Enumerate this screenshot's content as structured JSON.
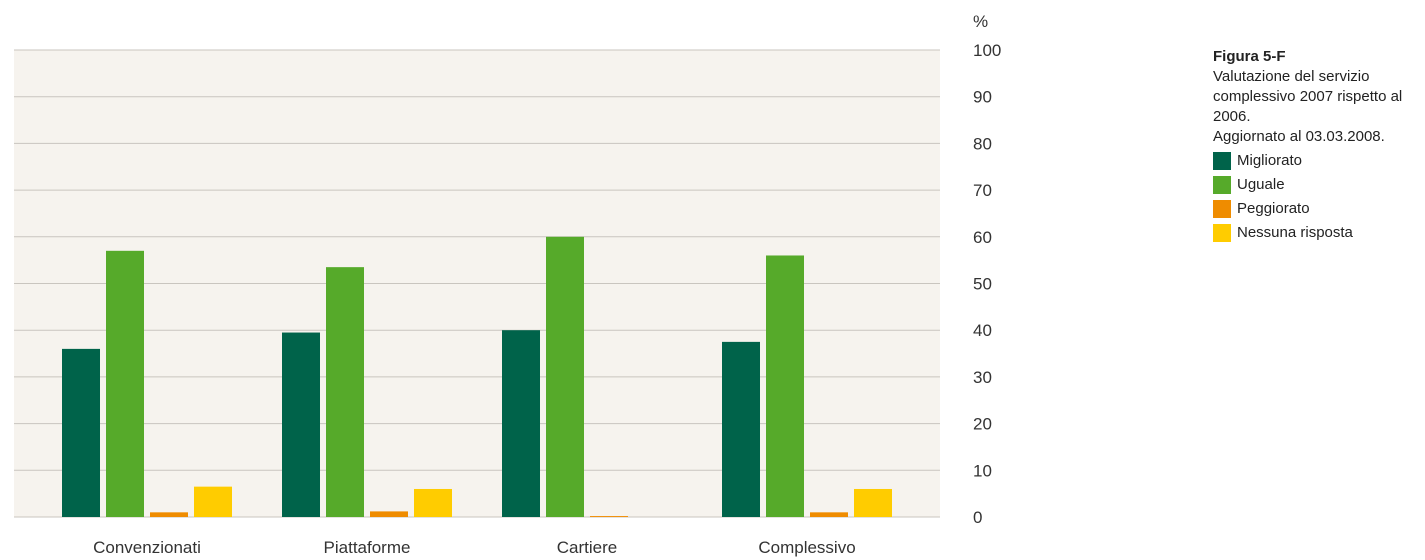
{
  "figure": {
    "title": "Figura 5-F",
    "description": "Valutazione del servizio complessivo 2007 rispetto al 2006.",
    "updated": "Aggiornato al 03.03.2008."
  },
  "chart_data": {
    "type": "bar",
    "categories": [
      "Convenzionati",
      "Piattaforme",
      "Cartiere",
      "Complessivo"
    ],
    "series": [
      {
        "name": "Migliorato",
        "color": "#00634a",
        "values": [
          36,
          39.5,
          40,
          37.5
        ]
      },
      {
        "name": "Uguale",
        "color": "#56aa2a",
        "values": [
          57,
          53.5,
          60,
          56
        ]
      },
      {
        "name": "Peggiorato",
        "color": "#ef8c00",
        "values": [
          1,
          1.2,
          0.2,
          1
        ]
      },
      {
        "name": "Nessuna risposta",
        "color": "#ffcc00",
        "values": [
          6.5,
          6,
          0,
          6
        ]
      }
    ],
    "ylabel": "%",
    "ylim": [
      0,
      100
    ],
    "yticks": [
      "0",
      "10",
      "20",
      "30",
      "40",
      "50",
      "60",
      "70",
      "80",
      "90",
      "100"
    ],
    "y_axis_side": "right",
    "grid": true,
    "legend_position": "right",
    "background_color": "#f6f3ee",
    "grid_color": "#c9c5bf"
  }
}
